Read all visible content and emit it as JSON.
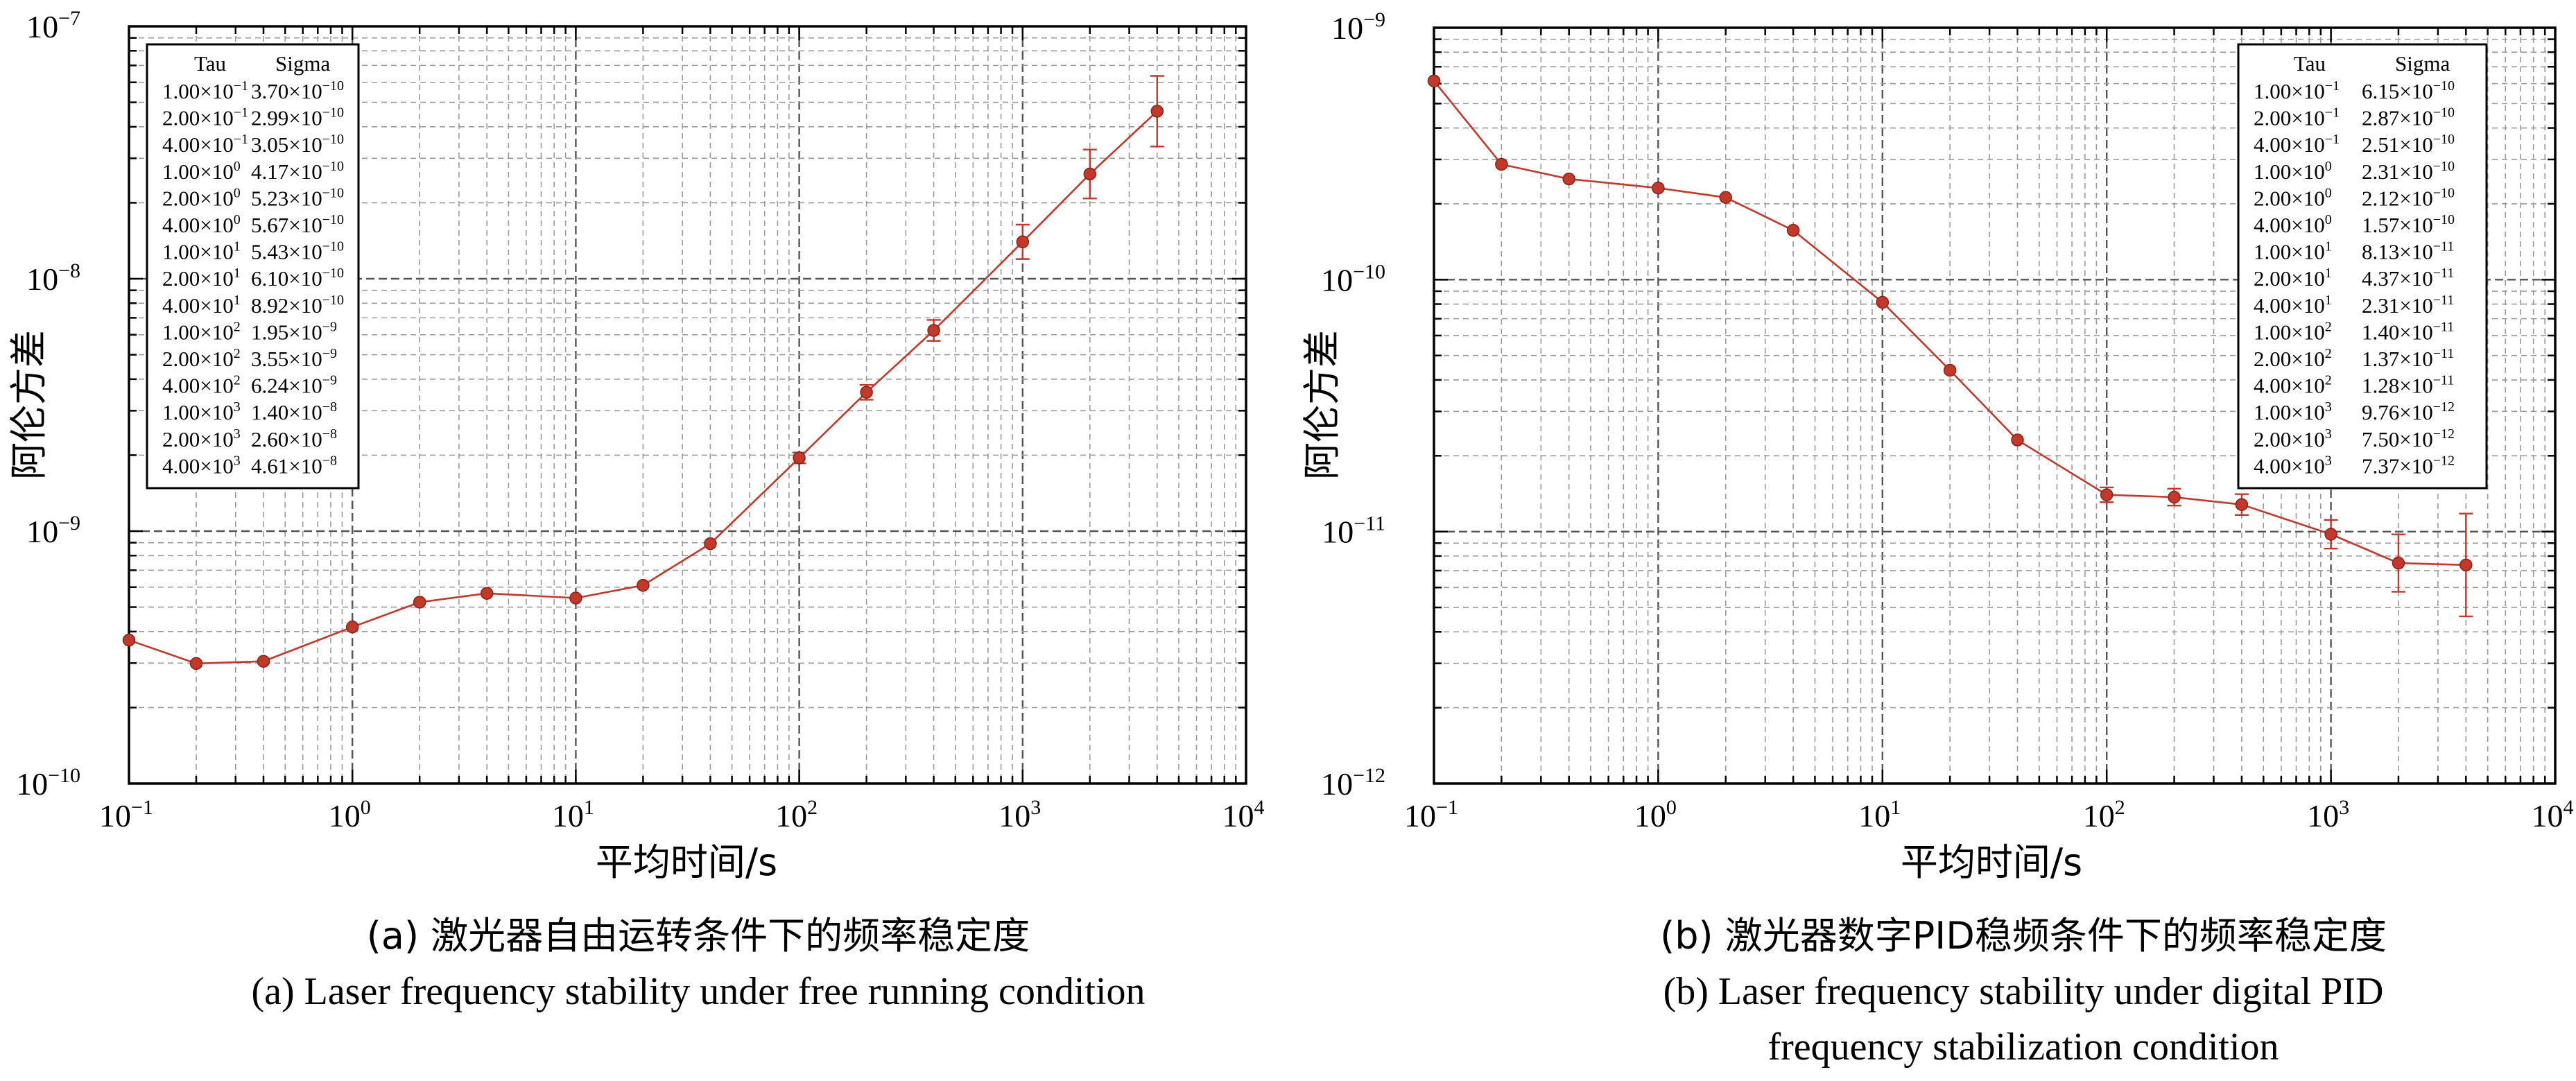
{
  "chart_data": [
    {
      "type": "line",
      "log_x": true,
      "log_y": true,
      "xlim": [
        0.1,
        10000
      ],
      "ylim": [
        1e-10,
        1e-07
      ],
      "x_ticks": [
        0.1,
        1,
        10,
        100,
        1000,
        10000
      ],
      "y_ticks": [
        1e-10,
        1e-09,
        1e-08,
        1e-07
      ],
      "xlabel": "平均时间/s",
      "ylabel": "阿伦方差",
      "grid": true,
      "line_color": "#c0392b",
      "legend_headers": [
        "Tau",
        "Sigma"
      ],
      "legend_position": "top-left",
      "x": [
        0.1,
        0.2,
        0.4,
        1,
        2,
        4,
        10,
        20,
        40,
        100,
        200,
        400,
        1000,
        2000,
        4000
      ],
      "y": [
        3.7e-10,
        2.99e-10,
        3.05e-10,
        4.17e-10,
        5.23e-10,
        5.67e-10,
        5.43e-10,
        6.1e-10,
        8.92e-10,
        1.95e-09,
        3.55e-09,
        6.24e-09,
        1.4e-08,
        2.6e-08,
        4.61e-08
      ],
      "error_bars_rel": [
        0,
        0,
        0,
        0,
        0,
        0,
        0,
        0,
        0,
        0.05,
        0.07,
        0.1,
        0.17,
        0.25,
        0.38
      ],
      "table": [
        [
          "1.00",
          "-1",
          "3.70",
          "-10"
        ],
        [
          "2.00",
          "-1",
          "2.99",
          "-10"
        ],
        [
          "4.00",
          "-1",
          "3.05",
          "-10"
        ],
        [
          "1.00",
          "0",
          "4.17",
          "-10"
        ],
        [
          "2.00",
          "0",
          "5.23",
          "-10"
        ],
        [
          "4.00",
          "0",
          "5.67",
          "-10"
        ],
        [
          "1.00",
          "1",
          "5.43",
          "-10"
        ],
        [
          "2.00",
          "1",
          "6.10",
          "-10"
        ],
        [
          "4.00",
          "1",
          "8.92",
          "-10"
        ],
        [
          "1.00",
          "2",
          "1.95",
          "-9"
        ],
        [
          "2.00",
          "2",
          "3.55",
          "-9"
        ],
        [
          "4.00",
          "2",
          "6.24",
          "-9"
        ],
        [
          "1.00",
          "3",
          "1.40",
          "-8"
        ],
        [
          "2.00",
          "3",
          "2.60",
          "-8"
        ],
        [
          "4.00",
          "3",
          "4.61",
          "-8"
        ]
      ],
      "caption_zh": "(a) 激光器自由运转条件下的频率稳定度",
      "caption_en": [
        "(a) Laser frequency stability under free running condition"
      ]
    },
    {
      "type": "line",
      "log_x": true,
      "log_y": true,
      "xlim": [
        0.1,
        10000
      ],
      "ylim": [
        1e-12,
        1e-09
      ],
      "x_ticks": [
        0.1,
        1,
        10,
        100,
        1000,
        10000
      ],
      "y_ticks": [
        1e-12,
        1e-11,
        1e-10,
        1e-09
      ],
      "xlabel": "平均时间/s",
      "ylabel": "阿伦方差",
      "grid": true,
      "line_color": "#c0392b",
      "legend_headers": [
        "Tau",
        "Sigma"
      ],
      "legend_position": "top-right",
      "x": [
        0.1,
        0.2,
        0.4,
        1,
        2,
        4,
        10,
        20,
        40,
        100,
        200,
        400,
        1000,
        2000,
        4000
      ],
      "y": [
        6.15e-10,
        2.87e-10,
        2.51e-10,
        2.31e-10,
        2.12e-10,
        1.57e-10,
        8.13e-11,
        4.37e-11,
        2.31e-11,
        1.4e-11,
        1.37e-11,
        1.28e-11,
        9.76e-12,
        7.5e-12,
        7.37e-12
      ],
      "error_bars_rel": [
        0,
        0,
        0,
        0,
        0,
        0,
        0,
        0,
        0,
        0.07,
        0.08,
        0.1,
        0.14,
        0.3,
        0.6
      ],
      "table": [
        [
          "1.00",
          "-1",
          "6.15",
          "-10"
        ],
        [
          "2.00",
          "-1",
          "2.87",
          "-10"
        ],
        [
          "4.00",
          "-1",
          "2.51",
          "-10"
        ],
        [
          "1.00",
          "0",
          "2.31",
          "-10"
        ],
        [
          "2.00",
          "0",
          "2.12",
          "-10"
        ],
        [
          "4.00",
          "0",
          "1.57",
          "-10"
        ],
        [
          "1.00",
          "1",
          "8.13",
          "-11"
        ],
        [
          "2.00",
          "1",
          "4.37",
          "-11"
        ],
        [
          "4.00",
          "1",
          "2.31",
          "-11"
        ],
        [
          "1.00",
          "2",
          "1.40",
          "-11"
        ],
        [
          "2.00",
          "2",
          "1.37",
          "-11"
        ],
        [
          "4.00",
          "2",
          "1.28",
          "-11"
        ],
        [
          "1.00",
          "3",
          "9.76",
          "-12"
        ],
        [
          "2.00",
          "3",
          "7.50",
          "-12"
        ],
        [
          "4.00",
          "3",
          "7.37",
          "-12"
        ]
      ],
      "caption_zh": "(b) 激光器数字PID稳频条件下的频率稳定度",
      "caption_en": [
        "(b) Laser frequency stability under digital PID",
        "frequency stabilization condition"
      ]
    }
  ]
}
